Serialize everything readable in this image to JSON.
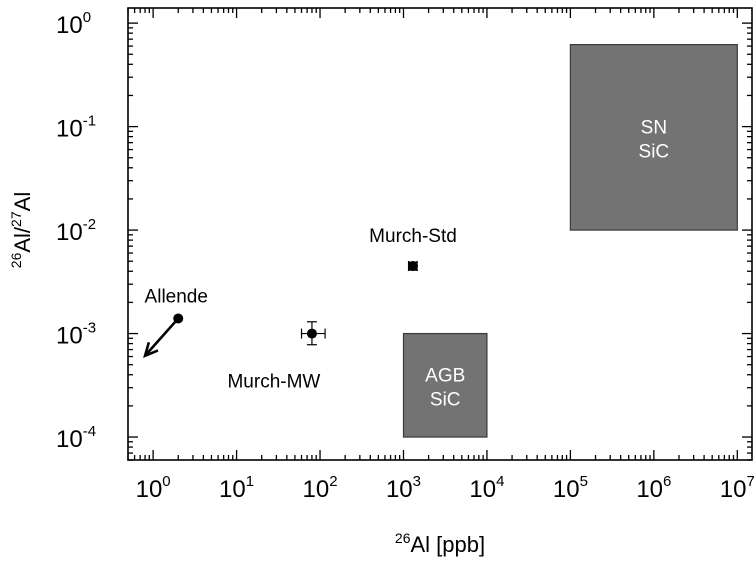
{
  "chart_data": {
    "type": "scatter",
    "x_scale": "log",
    "y_scale": "log",
    "xlim": [
      0.5,
      15000000.0
    ],
    "ylim": [
      6e-05,
      1.4
    ],
    "xlabel": {
      "sup": "26",
      "text": "Al [ppb]"
    },
    "ylabel": {
      "sup1": "26",
      "mid": "Al/",
      "sup2": "27",
      "end": "Al"
    },
    "x_ticks": [
      {
        "value": 1,
        "base": "10",
        "exp": "0"
      },
      {
        "value": 10,
        "base": "10",
        "exp": "1"
      },
      {
        "value": 100,
        "base": "10",
        "exp": "2"
      },
      {
        "value": 1000,
        "base": "10",
        "exp": "3"
      },
      {
        "value": 10000,
        "base": "10",
        "exp": "4"
      },
      {
        "value": 100000,
        "base": "10",
        "exp": "5"
      },
      {
        "value": 1000000,
        "base": "10",
        "exp": "6"
      },
      {
        "value": 10000000,
        "base": "10",
        "exp": "7"
      }
    ],
    "y_ticks": [
      {
        "value": 0.0001,
        "base": "10",
        "exp": "-4"
      },
      {
        "value": 0.001,
        "base": "10",
        "exp": "-3"
      },
      {
        "value": 0.01,
        "base": "10",
        "exp": "-2"
      },
      {
        "value": 0.1,
        "base": "10",
        "exp": "-1"
      },
      {
        "value": 1,
        "base": "10",
        "exp": "0"
      }
    ],
    "points": [
      {
        "label": "Allende",
        "x": 2,
        "y": 0.0014,
        "upper_limit_arrow": true,
        "arrow_to": {
          "x": 0.8,
          "y": 0.00061
        }
      },
      {
        "label": "Murch-MW",
        "x": 80,
        "y": 0.001,
        "x_err": [
          60,
          115
        ],
        "y_err": [
          0.00078,
          0.0013
        ]
      },
      {
        "label": "Murch-Std",
        "x": 1300,
        "y": 0.0045,
        "x_err": [
          1150,
          1450
        ],
        "y_err": [
          0.0041,
          0.0049
        ]
      }
    ],
    "boxes": [
      {
        "label_line1": "AGB",
        "label_line2": "SiC",
        "x_range": [
          1000,
          10000
        ],
        "y_range": [
          0.0001,
          0.001
        ]
      },
      {
        "label_line1": "SN",
        "label_line2": "SiC",
        "x_range": [
          100000,
          10000000
        ],
        "y_range": [
          0.01,
          0.62
        ]
      }
    ],
    "colors": {
      "box_fill": "#737373",
      "box_stroke": "#3a3a3a",
      "marker": "#000000"
    }
  }
}
